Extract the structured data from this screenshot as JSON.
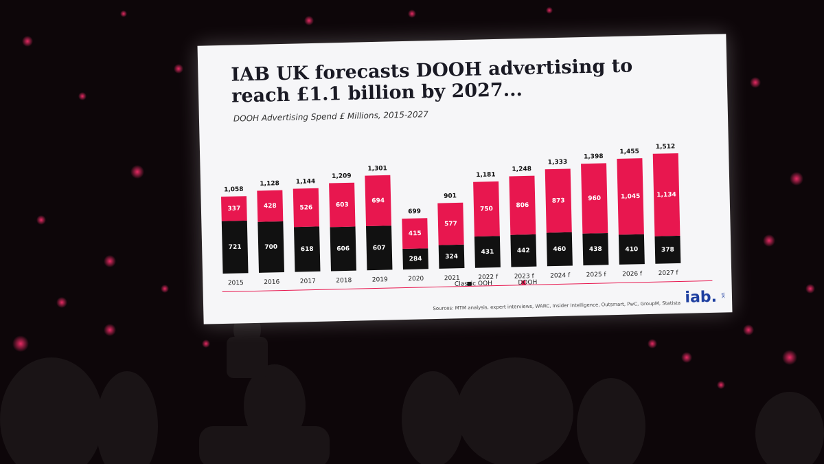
{
  "chart_data": {
    "type": "stacked-bar",
    "title": "IAB UK forecasts DOOH advertising to reach £1.1 billion by 2027...",
    "subtitle": "DOOH Advertising Spend £ Millions, 2015-2027",
    "categories": [
      "2015",
      "2016",
      "2017",
      "2018",
      "2019",
      "2020",
      "2021",
      "2022 f",
      "2023 f",
      "2024 f",
      "2025 f",
      "2026 f",
      "2027 f"
    ],
    "series": [
      {
        "name": "Classic OOH",
        "color": "#111111",
        "values": [
          721,
          700,
          618,
          606,
          607,
          284,
          324,
          431,
          442,
          460,
          438,
          410,
          378
        ]
      },
      {
        "name": "DOOH",
        "color": "#e8174f",
        "values": [
          337,
          428,
          526,
          603,
          694,
          415,
          577,
          750,
          806,
          873,
          960,
          1045,
          1134
        ],
        "value_labels": [
          "337",
          "428",
          "526",
          "603",
          "694",
          "415",
          "577",
          "750",
          "806",
          "873",
          "960",
          "1,045",
          "1,134"
        ]
      }
    ],
    "totals": [
      1058,
      1128,
      1144,
      1209,
      1301,
      699,
      901,
      1181,
      1248,
      1333,
      1398,
      1455,
      1512
    ],
    "total_labels": [
      "1,058",
      "1,128",
      "1,144",
      "1,209",
      "1,301",
      "699",
      "901",
      "1,181",
      "1,248",
      "1,333",
      "1,398",
      "1,455",
      "1,512"
    ],
    "legend": "bottom"
  },
  "slide": {
    "sources": "Sources: MTM analysis, expert interviews, WARC, Insider Intelligence, Outsmart, PwC, GroupM, Statista",
    "logo": "iab.",
    "logo_region": "UK"
  }
}
